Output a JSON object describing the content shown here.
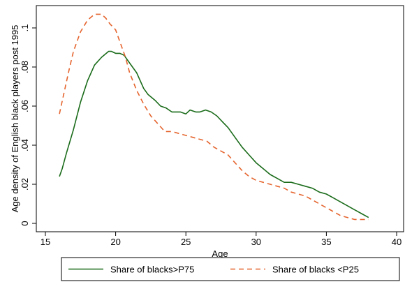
{
  "chart_data": {
    "type": "line",
    "title": "",
    "xlabel": "Age",
    "ylabel": "Age density of English black players post 1995",
    "xlim": [
      15,
      40
    ],
    "ylim": [
      0,
      0.11
    ],
    "x_ticks": [
      15,
      20,
      25,
      30,
      35,
      40
    ],
    "x_tick_labels": [
      "15",
      "20",
      "25",
      "30",
      "35",
      "40"
    ],
    "y_ticks": [
      0,
      0.02,
      0.04,
      0.06,
      0.08,
      0.1
    ],
    "y_tick_labels": [
      "0",
      ".02",
      ".04",
      ".06",
      ".08",
      ".1"
    ],
    "grid": false,
    "legend_position": "bottom",
    "series": [
      {
        "name": "Share of blacks>P75",
        "color": "#1a6b1a",
        "style": "solid",
        "x": [
          16.0,
          16.2,
          16.5,
          17.0,
          17.5,
          18.0,
          18.5,
          19.0,
          19.5,
          19.7,
          20.0,
          20.3,
          20.6,
          21.0,
          21.5,
          22.0,
          22.3,
          22.8,
          23.2,
          23.6,
          24.0,
          24.3,
          24.6,
          25.0,
          25.3,
          25.7,
          26.0,
          26.4,
          26.8,
          27.2,
          27.6,
          28.0,
          28.5,
          29.0,
          29.5,
          30.0,
          30.5,
          31.0,
          31.5,
          32.0,
          32.5,
          33.0,
          33.5,
          34.0,
          34.5,
          35.0,
          35.5,
          36.0,
          36.5,
          37.0,
          37.5,
          38.0
        ],
        "y": [
          0.024,
          0.028,
          0.036,
          0.048,
          0.062,
          0.073,
          0.081,
          0.085,
          0.088,
          0.088,
          0.087,
          0.087,
          0.086,
          0.082,
          0.077,
          0.069,
          0.066,
          0.063,
          0.06,
          0.059,
          0.057,
          0.057,
          0.057,
          0.056,
          0.058,
          0.057,
          0.057,
          0.058,
          0.057,
          0.055,
          0.052,
          0.049,
          0.044,
          0.039,
          0.035,
          0.031,
          0.028,
          0.025,
          0.023,
          0.021,
          0.021,
          0.02,
          0.019,
          0.018,
          0.016,
          0.015,
          0.013,
          0.011,
          0.009,
          0.007,
          0.005,
          0.003
        ]
      },
      {
        "name": "Share of blacks <P25",
        "color": "#e5642e",
        "style": "dashed",
        "x": [
          16.0,
          16.3,
          16.7,
          17.0,
          17.5,
          18.0,
          18.5,
          18.8,
          19.0,
          19.3,
          19.6,
          20.0,
          20.3,
          20.7,
          21.0,
          21.5,
          22.0,
          22.5,
          23.0,
          23.5,
          24.0,
          24.5,
          25.0,
          25.5,
          26.0,
          26.5,
          27.0,
          27.5,
          28.0,
          28.5,
          29.0,
          29.5,
          30.0,
          30.5,
          31.0,
          31.5,
          32.0,
          32.5,
          33.0,
          33.5,
          34.0,
          34.5,
          35.0,
          35.5,
          36.0,
          36.5,
          37.0,
          37.5,
          38.0
        ],
        "y": [
          0.056,
          0.066,
          0.079,
          0.088,
          0.098,
          0.104,
          0.107,
          0.107,
          0.107,
          0.105,
          0.102,
          0.099,
          0.093,
          0.085,
          0.077,
          0.068,
          0.061,
          0.055,
          0.051,
          0.047,
          0.047,
          0.046,
          0.045,
          0.044,
          0.043,
          0.042,
          0.039,
          0.037,
          0.035,
          0.031,
          0.027,
          0.024,
          0.022,
          0.021,
          0.02,
          0.019,
          0.018,
          0.016,
          0.015,
          0.014,
          0.012,
          0.01,
          0.008,
          0.006,
          0.004,
          0.003,
          0.002,
          0.002,
          0.002
        ]
      }
    ]
  }
}
